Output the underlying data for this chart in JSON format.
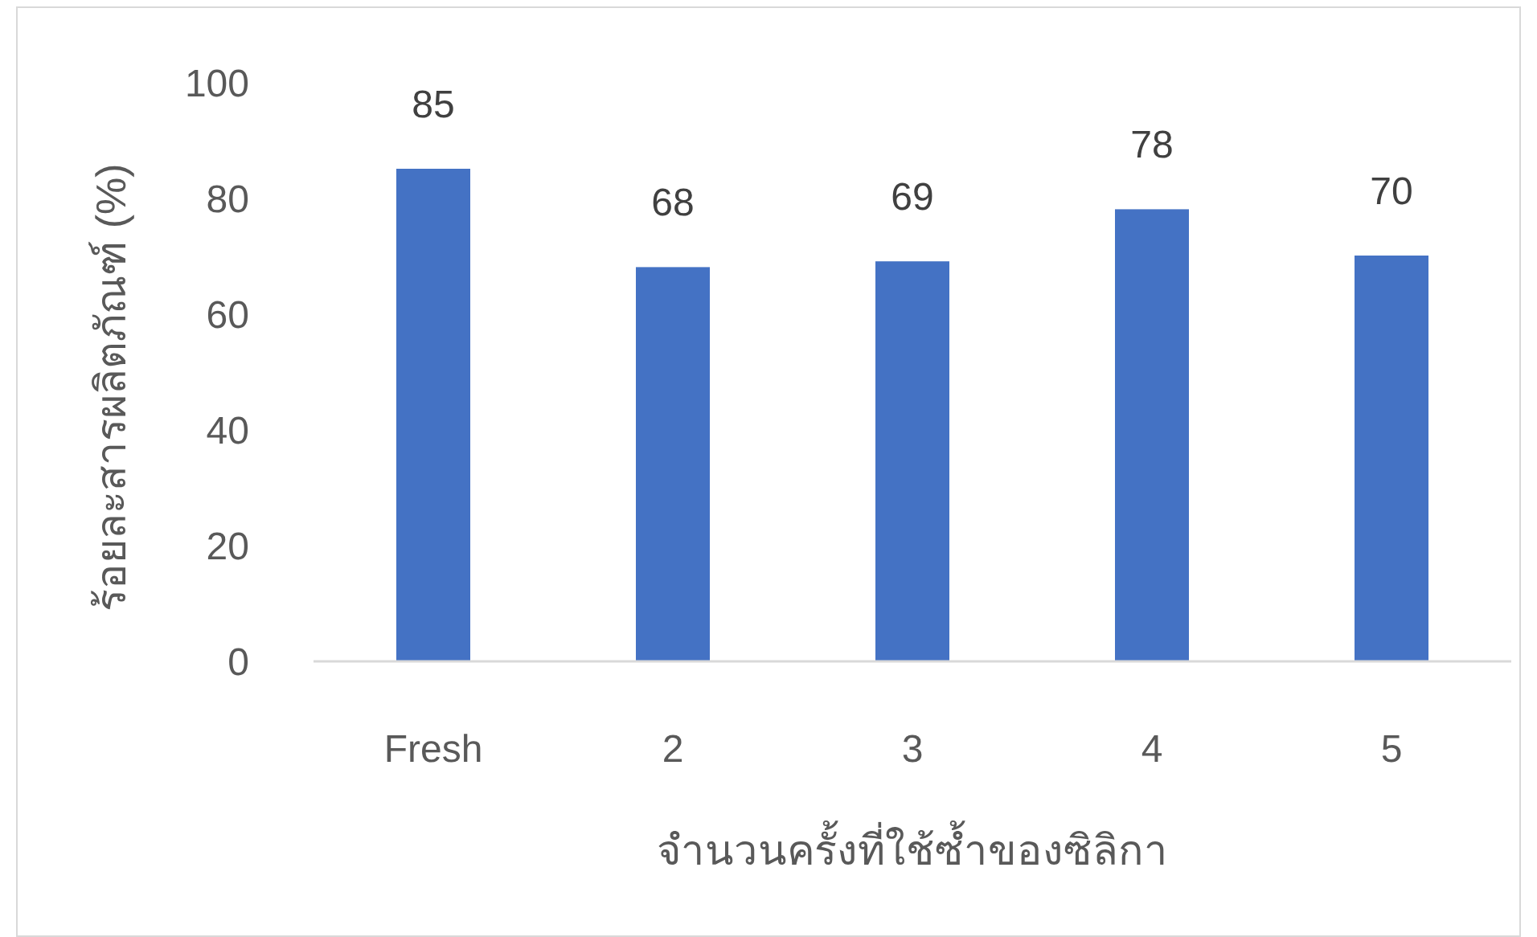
{
  "chart_data": {
    "type": "bar",
    "xlabel": "จำนวนครั้งที่ใช้ซ้ำของซิลิกา",
    "ylabel": "ร้อยละสารผลิตภัณฑ์ (%)",
    "categories": [
      "Fresh",
      "2",
      "3",
      "4",
      "5"
    ],
    "values": [
      85,
      68,
      69,
      78,
      70
    ],
    "color": "#4472c4",
    "ylim": [
      0,
      100
    ],
    "yticks": [
      0,
      20,
      40,
      60,
      80,
      100
    ],
    "grid": false,
    "data_labels": true
  }
}
